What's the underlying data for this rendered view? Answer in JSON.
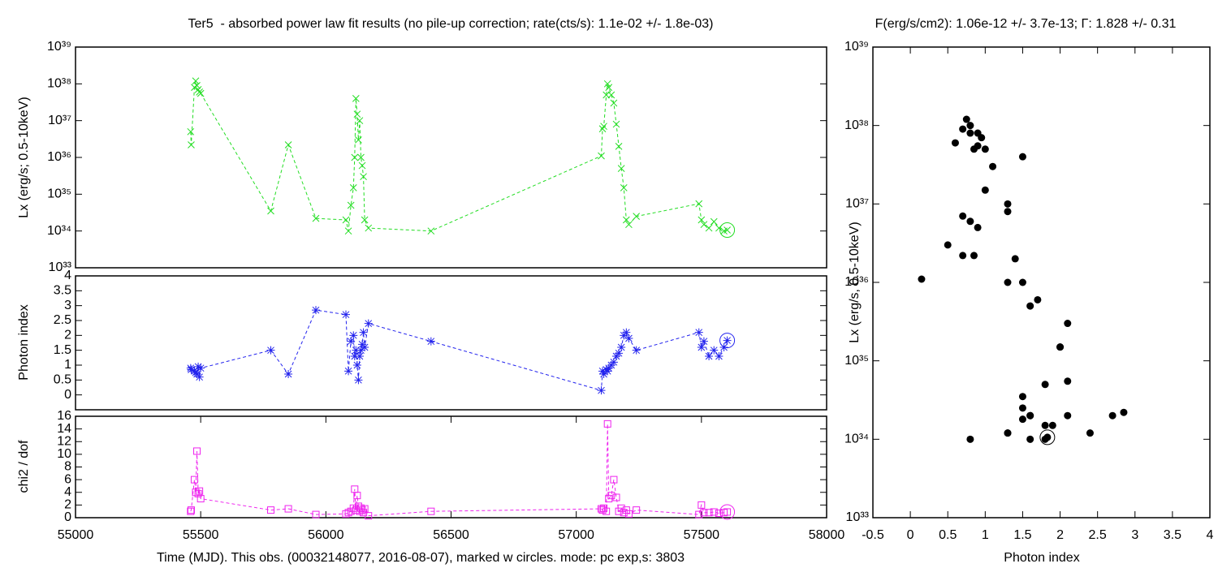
{
  "chart_data": [
    {
      "type": "line",
      "title": "Ter5  - absorbed power law fit results (no pile-up correction; rate(cts/s): 1.1e-02 +/- 1.8e-03)",
      "y_label": "Lx (erg/s; 0.5-10keV)",
      "ylog": true,
      "xlim": [
        55000,
        58000
      ],
      "ylim": [
        1e+33,
        1e+39
      ],
      "yticks": [
        {
          "value": 1e+33,
          "label": "10³³"
        },
        {
          "value": 1e+34,
          "label": "10³⁴"
        },
        {
          "value": 1e+35,
          "label": "10³⁵"
        },
        {
          "value": 1e+36,
          "label": "10³⁶"
        },
        {
          "value": 1e+37,
          "label": "10³⁷"
        },
        {
          "value": 1e+38,
          "label": "10³⁸"
        },
        {
          "value": 1e+39,
          "label": "10³⁹"
        }
      ],
      "x": [
        55460,
        55462,
        55475,
        55480,
        55485,
        55490,
        55495,
        55500,
        55780,
        55850,
        55960,
        56080,
        56090,
        56100,
        56110,
        56115,
        56120,
        56125,
        56130,
        56135,
        56140,
        56145,
        56150,
        56155,
        56170,
        56420,
        57100,
        57105,
        57110,
        57120,
        57125,
        57130,
        57140,
        57150,
        57160,
        57170,
        57180,
        57190,
        57200,
        57210,
        57240,
        57490,
        57500,
        57510,
        57530,
        57550,
        57570,
        57590,
        57603
      ],
      "series": [
        {
          "color": "#22dd22",
          "marker": "x",
          "values": [
            5e+36,
            2.2e+36,
            8e+37,
            1.2e+38,
            9e+37,
            7e+37,
            6e+37,
            5.5e+37,
            3.5e+34,
            2.2e+36,
            2.2e+34,
            2e+34,
            1e+34,
            5e+34,
            1.5e+35,
            1e+36,
            4e+37,
            1.5e+37,
            3e+36,
            1e+37,
            1e+36,
            6e+35,
            3e+35,
            2e+34,
            1.2e+34,
            1e+34,
            1.1e+36,
            6e+36,
            7e+36,
            5e+37,
            1e+38,
            8e+37,
            5e+37,
            3e+37,
            8e+36,
            2e+36,
            5e+35,
            1.5e+35,
            2e+34,
            1.5e+34,
            2.5e+34,
            5.5e+34,
            2e+34,
            1.5e+34,
            1.2e+34,
            1.8e+34,
            1.2e+34,
            1e+34,
            1.06e+34
          ]
        }
      ],
      "mark_current": true
    },
    {
      "type": "line",
      "y_label": "Photon index",
      "xlim": [
        55000,
        58000
      ],
      "ylim": [
        -0.5,
        4
      ],
      "yticks": [
        0,
        0.5,
        1,
        1.5,
        2,
        2.5,
        3,
        3.5,
        4
      ],
      "x": [
        55460,
        55462,
        55475,
        55480,
        55485,
        55490,
        55495,
        55500,
        55780,
        55850,
        55960,
        56080,
        56090,
        56100,
        56110,
        56115,
        56120,
        56125,
        56130,
        56135,
        56140,
        56145,
        56150,
        56155,
        56170,
        56420,
        57100,
        57105,
        57110,
        57120,
        57125,
        57130,
        57140,
        57150,
        57160,
        57170,
        57180,
        57190,
        57200,
        57210,
        57240,
        57490,
        57500,
        57510,
        57530,
        57550,
        57570,
        57590,
        57603
      ],
      "series": [
        {
          "color": "#2222ee",
          "marker": "asterisk",
          "values": [
            0.9,
            0.85,
            0.8,
            0.75,
            0.7,
            0.95,
            0.6,
            0.9,
            1.5,
            0.7,
            2.85,
            2.7,
            0.8,
            1.8,
            2.0,
            1.3,
            1.5,
            1.0,
            0.5,
            1.3,
            1.5,
            1.7,
            2.1,
            1.6,
            2.4,
            1.8,
            0.15,
            0.8,
            0.7,
            0.85,
            0.8,
            0.9,
            1.0,
            1.1,
            1.3,
            1.4,
            1.6,
            2.0,
            2.1,
            1.9,
            1.5,
            2.1,
            1.6,
            1.8,
            1.3,
            1.5,
            1.3,
            1.6,
            1.83
          ]
        }
      ],
      "mark_current": true
    },
    {
      "type": "line",
      "y_label": "chi2 / dof",
      "x_label": "Time (MJD). This obs. (00032148077, 2016-08-07), marked w circles. mode: pc exp,s: 3803",
      "xlim": [
        55000,
        58000
      ],
      "ylim": [
        0,
        16
      ],
      "xticks": [
        55000,
        55500,
        56000,
        56500,
        57000,
        57500,
        58000
      ],
      "yticks": [
        0,
        2,
        4,
        6,
        8,
        10,
        12,
        14,
        16
      ],
      "x": [
        55460,
        55462,
        55475,
        55480,
        55485,
        55490,
        55495,
        55500,
        55780,
        55850,
        55960,
        56080,
        56090,
        56100,
        56110,
        56115,
        56120,
        56125,
        56130,
        56135,
        56140,
        56145,
        56150,
        56155,
        56170,
        56420,
        57100,
        57105,
        57110,
        57120,
        57125,
        57130,
        57140,
        57150,
        57160,
        57170,
        57180,
        57190,
        57200,
        57210,
        57240,
        57490,
        57500,
        57510,
        57530,
        57550,
        57570,
        57590,
        57603
      ],
      "series": [
        {
          "color": "#ee22ee",
          "marker": "square",
          "values": [
            1.0,
            1.2,
            6.0,
            4.0,
            10.5,
            3.8,
            4.2,
            3.0,
            1.2,
            1.4,
            0.5,
            0.6,
            0.8,
            1.0,
            1.5,
            4.5,
            1.2,
            3.5,
            1.8,
            1.0,
            1.5,
            1.2,
            0.8,
            1.4,
            0.3,
            1.0,
            1.4,
            1.2,
            1.5,
            1.0,
            14.8,
            3.0,
            3.5,
            6.0,
            3.2,
            1.0,
            1.5,
            0.8,
            1.2,
            0.6,
            1.2,
            0.5,
            2.0,
            0.8,
            0.8,
            0.9,
            0.7,
            0.8,
            0.9
          ]
        }
      ],
      "mark_current": true
    },
    {
      "type": "scatter",
      "title": "F(erg/s/cm2): 1.06e-12 +/- 3.7e-13; Γ: 1.828 +/- 0.31",
      "x_label": "Photon index",
      "y_label": "Lx (erg/s, 0.5-10keV)",
      "ylog": true,
      "xlim": [
        -0.5,
        4
      ],
      "ylim": [
        1e+33,
        1e+39
      ],
      "xticks": [
        -0.5,
        0,
        0.5,
        1,
        1.5,
        2,
        2.5,
        3,
        3.5,
        4
      ],
      "yticks": [
        {
          "value": 1e+33,
          "label": "10³³"
        },
        {
          "value": 1e+34,
          "label": "10³⁴"
        },
        {
          "value": 1e+35,
          "label": "10³⁵"
        },
        {
          "value": 1e+36,
          "label": "10³⁶"
        },
        {
          "value": 1e+37,
          "label": "10³⁷"
        },
        {
          "value": 1e+38,
          "label": "10³⁸"
        },
        {
          "value": 1e+39,
          "label": "10³⁹"
        }
      ],
      "x": [
        0.9,
        0.85,
        0.8,
        0.75,
        0.7,
        0.95,
        0.6,
        0.9,
        1.5,
        0.7,
        2.85,
        2.7,
        0.8,
        1.8,
        2.0,
        1.3,
        1.5,
        1.0,
        0.5,
        1.3,
        1.5,
        1.7,
        2.1,
        1.6,
        2.4,
        1.8,
        0.15,
        0.8,
        0.7,
        0.85,
        0.8,
        0.9,
        1.0,
        1.1,
        1.3,
        1.4,
        1.6,
        2.0,
        2.1,
        1.9,
        1.5,
        2.1,
        1.6,
        1.8,
        1.3,
        1.5,
        1.3,
        1.6,
        1.83
      ],
      "series": [
        {
          "color": "#000000",
          "marker": "circle",
          "values": [
            5e+36,
            2.2e+36,
            8e+37,
            1.2e+38,
            9e+37,
            7e+37,
            6e+37,
            5.5e+37,
            3.5e+34,
            2.2e+36,
            2.2e+34,
            2e+34,
            1e+34,
            5e+34,
            1.5e+35,
            1e+36,
            4e+37,
            1.5e+37,
            3e+36,
            1e+37,
            1e+36,
            6e+35,
            3e+35,
            2e+34,
            1.2e+34,
            1e+34,
            1.1e+36,
            6e+36,
            7e+36,
            5e+37,
            1e+38,
            8e+37,
            5e+37,
            3e+37,
            8e+36,
            2e+36,
            5e+35,
            1.5e+35,
            2e+34,
            1.5e+34,
            2.5e+34,
            5.5e+34,
            2e+34,
            1.5e+34,
            1.2e+34,
            1.8e+34,
            1.2e+34,
            1e+34,
            1.06e+34
          ]
        }
      ],
      "mark_current": true
    }
  ]
}
